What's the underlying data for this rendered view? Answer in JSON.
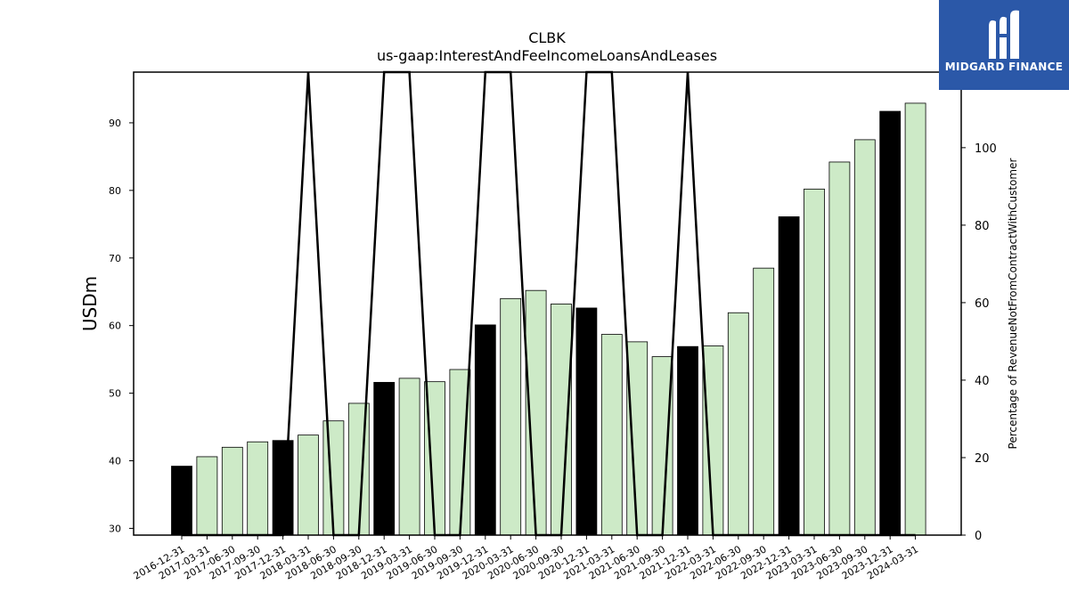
{
  "brand": {
    "name": "MIDGARD FINANCE",
    "logo_icon": "midgard-logo-icon",
    "color": "#2b58a8"
  },
  "chart_data": {
    "type": "bar",
    "title": "CLBK",
    "subtitle": "us-gaap:InterestAndFeeIncomeLoansAndLeases",
    "ylabel": "USDm",
    "ylabel_right": "Percentage of RevenueNotFromContractWithCustomer",
    "ylim": [
      29,
      97.5
    ],
    "ylim_right": [
      0,
      119.5
    ],
    "yticks": [
      30,
      40,
      50,
      60,
      70,
      80,
      90
    ],
    "yticks_right": [
      0,
      20,
      40,
      60,
      80,
      100
    ],
    "colors": {
      "annual": "#000000",
      "quarterly": "#cdeac7"
    },
    "categories": [
      "2016-12-31",
      "2017-03-31",
      "2017-06-30",
      "2017-09-30",
      "2017-12-31",
      "2018-03-31",
      "2018-06-30",
      "2018-09-30",
      "2018-12-31",
      "2019-03-31",
      "2019-06-30",
      "2019-09-30",
      "2019-12-31",
      "2020-03-31",
      "2020-06-30",
      "2020-09-30",
      "2020-12-31",
      "2021-03-31",
      "2021-06-30",
      "2021-09-30",
      "2021-12-31",
      "2022-03-31",
      "2022-06-30",
      "2022-09-30",
      "2022-12-31",
      "2023-03-31",
      "2023-06-30",
      "2023-09-30",
      "2023-12-31",
      "2024-03-31"
    ],
    "values": [
      39.2,
      40.6,
      42.0,
      42.8,
      43.0,
      43.8,
      45.9,
      48.5,
      51.6,
      52.2,
      51.7,
      53.5,
      60.1,
      64.0,
      65.2,
      63.2,
      62.6,
      58.7,
      57.6,
      55.4,
      56.9,
      57.0,
      61.9,
      68.5,
      76.1,
      80.2,
      84.2,
      87.5,
      91.7,
      92.9
    ],
    "annual": [
      true,
      false,
      false,
      false,
      true,
      false,
      false,
      false,
      true,
      false,
      false,
      false,
      true,
      false,
      false,
      false,
      true,
      false,
      false,
      false,
      true,
      false,
      false,
      false,
      true,
      false,
      false,
      false,
      true,
      false
    ],
    "ratio_series": {
      "x": [
        "2016-12-31",
        "2017-03-31",
        "2017-06-30",
        "2017-09-30",
        "2017-12-31",
        "2018-03-31",
        "2018-06-30",
        "2018-09-30",
        "2018-12-31",
        "2019-03-31",
        "2019-06-30",
        "2019-09-30",
        "2019-12-31",
        "2020-03-31",
        "2020-06-30",
        "2020-09-30",
        "2020-12-31",
        "2021-03-31",
        "2021-06-30",
        "2021-09-30",
        "2021-12-31",
        "2022-03-31",
        "2022-06-30",
        "2022-09-30",
        "2022-12-31",
        "2023-03-31",
        "2023-06-30",
        "2023-09-30",
        "2023-12-31",
        "2024-03-31"
      ],
      "y": [
        0,
        0,
        0,
        0,
        0,
        119.5,
        0,
        0,
        119.5,
        119.5,
        0,
        0,
        119.5,
        119.5,
        0,
        0,
        119.5,
        119.5,
        0,
        0,
        119.5,
        0,
        0,
        0,
        0,
        0,
        0,
        0,
        0,
        0
      ]
    }
  }
}
